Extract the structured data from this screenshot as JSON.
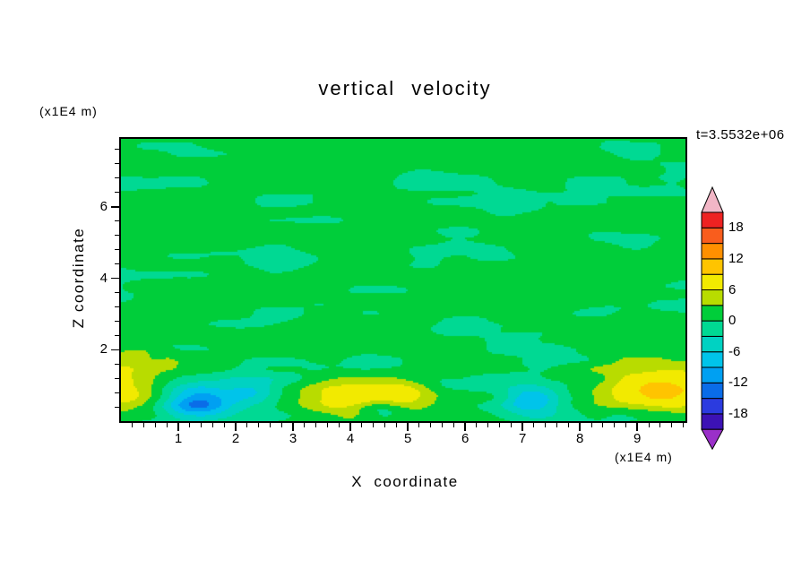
{
  "chart_data": {
    "type": "heatmap",
    "title": "vertical velocity",
    "time_annotation": "t=3.5532e+06",
    "xlabel": "X coordinate",
    "ylabel": "Z coordinate",
    "x_unit_label": "(x1E4 m)",
    "y_unit_label": "(x1E4 m)",
    "xlim": [
      0,
      9.84
    ],
    "ylim": [
      0,
      7.9
    ],
    "x_ticks": [
      1,
      2,
      3,
      4,
      5,
      6,
      7,
      8,
      9
    ],
    "y_ticks": [
      2,
      4,
      6
    ],
    "x_minor_step": 0.2,
    "y_minor_step": 0.4,
    "grid": false,
    "legend_position": "right-colorbar",
    "colorbar": {
      "tick_labels": [
        18,
        12,
        6,
        0,
        -6,
        -12,
        -18
      ],
      "levels": [
        -21,
        -18,
        -15,
        -12,
        -9,
        -6,
        -3,
        0,
        3,
        6,
        9,
        12,
        15,
        18,
        21
      ],
      "colors_low_to_high": [
        "#3c12b5",
        "#2b3bdf",
        "#0a6ce8",
        "#00a0f2",
        "#00c4ea",
        "#00d2c2",
        "#00d993",
        "#00ce3a",
        "#b8dc00",
        "#f2ea00",
        "#ffc400",
        "#ff9000",
        "#f95d1d",
        "#ee2222"
      ],
      "under_color": "#9a30c9",
      "over_color": "#f2b6c6"
    },
    "field_model": {
      "description": "background near 0 (green / spring-green turbulence bands), stronger features along bottom boundary",
      "background_mean": 0.85,
      "noise_amplitude": 2.6,
      "noise_gain": 1.7,
      "noise_octaves": [
        {
          "sx": 1.55,
          "sy": 0.5,
          "w": 0.5
        },
        {
          "sx": 0.78,
          "sy": 0.26,
          "w": 0.3
        },
        {
          "sx": 3.1,
          "sy": 1.05,
          "w": 0.2
        }
      ],
      "bottom_bias": {
        "amp": -0.9,
        "y_center": 0.5,
        "y_sigma": 0.7
      },
      "blobs": [
        {
          "x": 0.05,
          "y": 0.95,
          "sx": 0.5,
          "sy": 0.55,
          "amp": 8.2
        },
        {
          "x": 1.35,
          "y": 0.55,
          "sx": 0.4,
          "sy": 0.3,
          "amp": -12
        },
        {
          "x": 2.3,
          "y": 0.8,
          "sx": 0.34,
          "sy": 0.26,
          "amp": -6.5
        },
        {
          "x": 3.95,
          "y": 0.7,
          "sx": 0.55,
          "sy": 0.36,
          "amp": 8
        },
        {
          "x": 4.55,
          "y": 0.3,
          "sx": 0.3,
          "sy": 0.2,
          "amp": -4.5
        },
        {
          "x": 4.95,
          "y": 0.85,
          "sx": 0.36,
          "sy": 0.3,
          "amp": 7
        },
        {
          "x": 7.15,
          "y": 0.6,
          "sx": 0.34,
          "sy": 0.27,
          "amp": -8.5
        },
        {
          "x": 9.5,
          "y": 0.85,
          "sx": 0.85,
          "sy": 0.55,
          "amp": 8.2
        }
      ]
    }
  }
}
